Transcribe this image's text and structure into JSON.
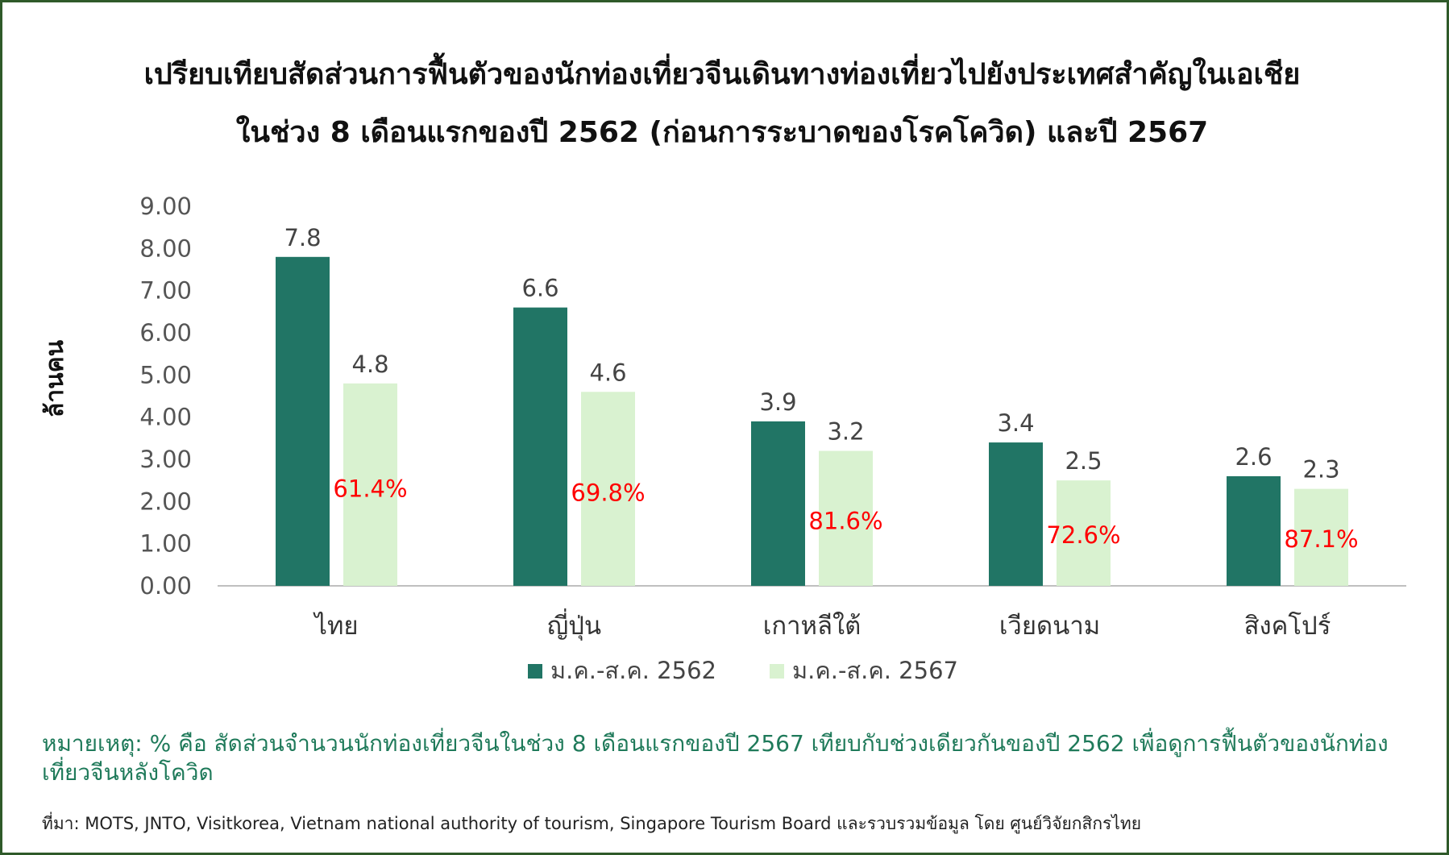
{
  "chart_data": {
    "type": "bar",
    "title": "เปรียบเทียบสัดส่วนการฟื้นตัวของนักท่องเที่ยวจีนเดินทางท่องเที่ยวไปยังประเทศสำคัญในเอเชีย",
    "subtitle": "ในช่วง 8 เดือนแรกของปี 2562 (ก่อนการระบาดของโรคโควิด) และปี 2567",
    "xlabel": "",
    "ylabel": "ล้านคน",
    "ylim": [
      0,
      9
    ],
    "yticks": [
      "0.00",
      "1.00",
      "2.00",
      "3.00",
      "4.00",
      "5.00",
      "6.00",
      "7.00",
      "8.00",
      "9.00"
    ],
    "categories": [
      "ไทย",
      "ญี่ปุ่น",
      "เกาหลีใต้",
      "เวียดนาม",
      "สิงคโปร์"
    ],
    "series": [
      {
        "name": "ม.ค.-ส.ค. 2562",
        "values": [
          7.8,
          6.6,
          3.9,
          3.4,
          2.6
        ],
        "labels": [
          "7.8",
          "6.6",
          "3.9",
          "3.4",
          "2.6"
        ],
        "color": "#217565"
      },
      {
        "name": "ม.ค.-ส.ค. 2567",
        "values": [
          4.8,
          4.6,
          3.2,
          2.5,
          2.3
        ],
        "labels": [
          "4.8",
          "4.6",
          "3.2",
          "2.5",
          "2.3"
        ],
        "color": "#d9f2d0"
      }
    ],
    "recovery_labels": [
      "61.4%",
      "69.8%",
      "81.6%",
      "72.6%",
      "87.1%"
    ],
    "recovery_color": "#ff0000",
    "legend": "bottom",
    "grid": false
  },
  "note": "หมายเหตุ: % คือ สัดส่วนจำนวนนักท่องเที่ยวจีนในช่วง 8 เดือนแรกของปี 2567 เทียบกับช่วงเดียวกันของปี 2562 เพื่อดูการฟื้นตัวของนักท่องเที่ยวจีนหลังโควิด",
  "source": "ที่มา: MOTS, JNTO, Visitkorea, Vietnam national authority of tourism, Singapore Tourism Board และรวบรวมข้อมูล โดย ศูนย์วิจัยกสิกรไทย",
  "colors": {
    "frame": "#2f5a2a",
    "note_text": "#1f7a5a"
  }
}
